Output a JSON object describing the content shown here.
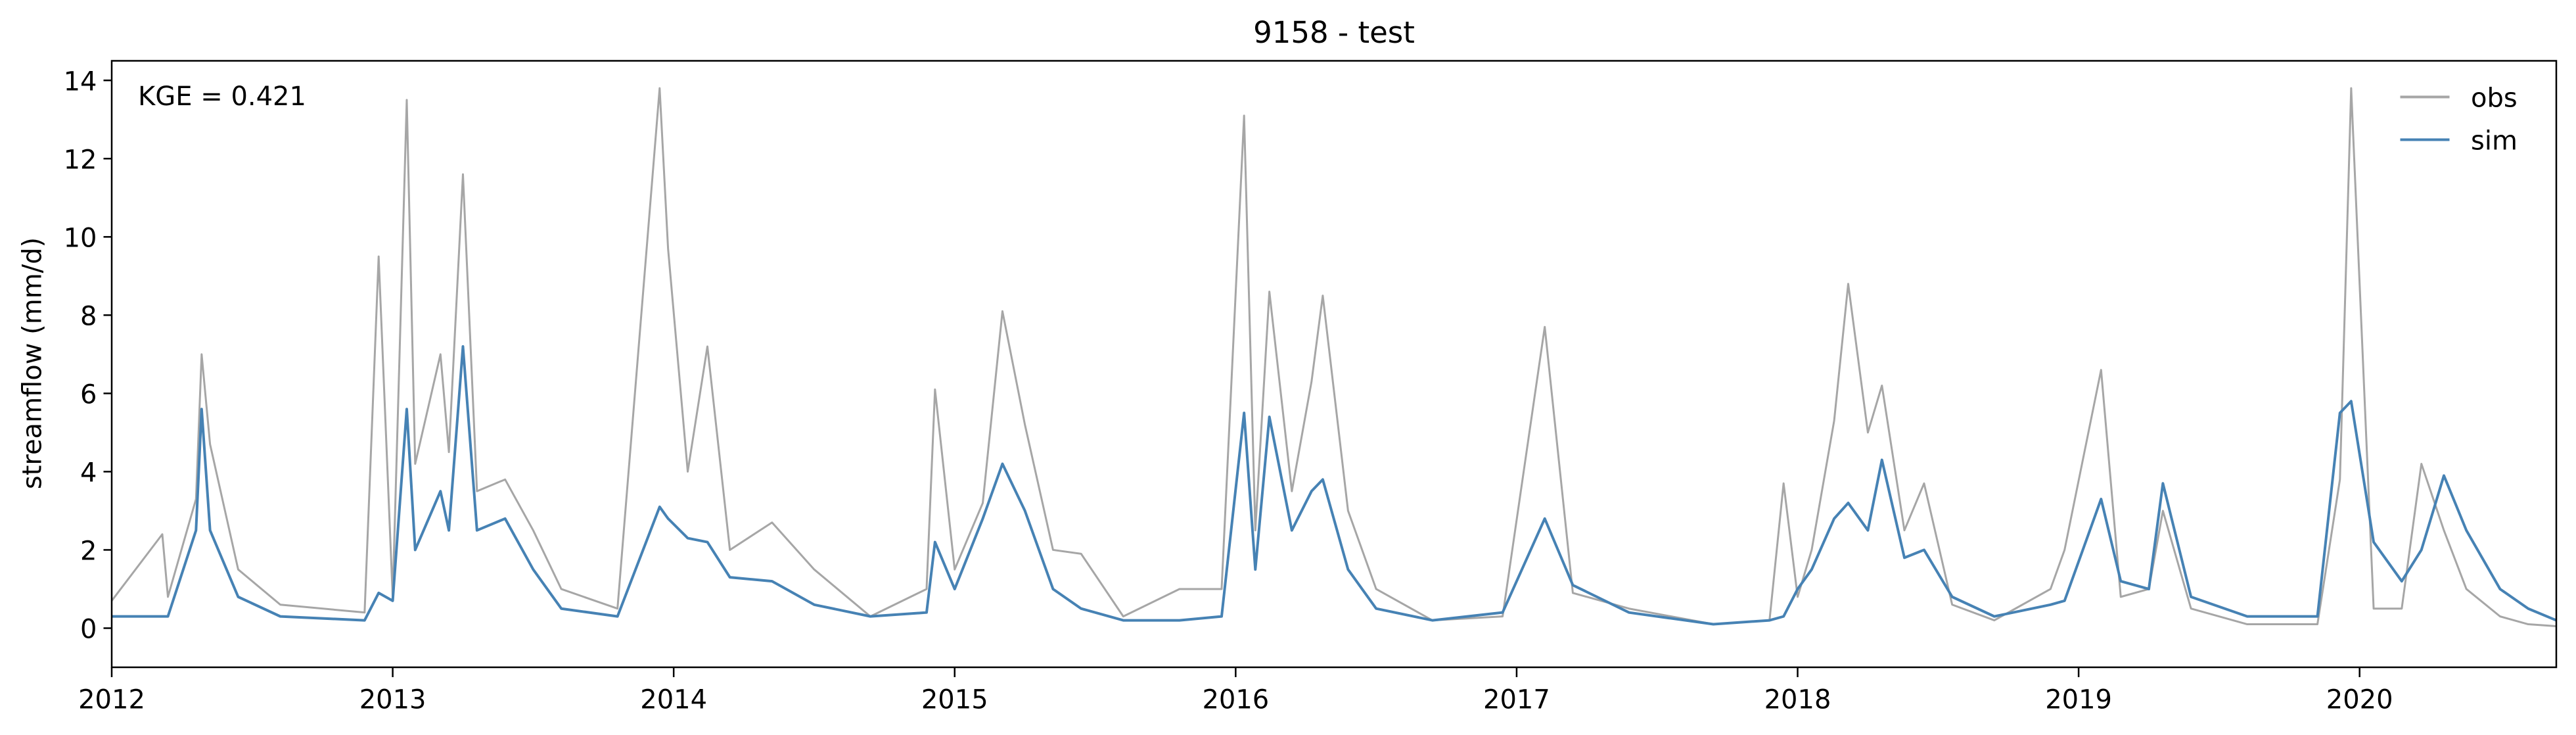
{
  "chart_data": {
    "type": "line",
    "title": "9158 - test",
    "annotation": "KGE = 0.421",
    "ylabel": "streamflow (mm/d)",
    "xlim": [
      2012,
      2020.7
    ],
    "xticks": [
      2012,
      2013,
      2014,
      2015,
      2016,
      2017,
      2018,
      2019,
      2020
    ],
    "ylim": [
      -1,
      14.5
    ],
    "yticks": [
      0,
      2,
      4,
      6,
      8,
      10,
      12,
      14
    ],
    "legend": "upper right",
    "x": [
      2012,
      2012.18,
      2012.2,
      2012.3,
      2012.32,
      2012.35,
      2012.45,
      2012.6,
      2012.9,
      2012.95,
      2013,
      2013.05,
      2013.08,
      2013.17,
      2013.2,
      2013.25,
      2013.3,
      2013.4,
      2013.5,
      2013.6,
      2013.8,
      2013.95,
      2013.98,
      2014.05,
      2014.12,
      2014.2,
      2014.35,
      2014.5,
      2014.7,
      2014.9,
      2014.93,
      2015,
      2015.1,
      2015.17,
      2015.25,
      2015.35,
      2015.45,
      2015.6,
      2015.8,
      2015.95,
      2016.03,
      2016.07,
      2016.12,
      2016.2,
      2016.27,
      2016.31,
      2016.4,
      2016.5,
      2016.7,
      2016.95,
      2017.1,
      2017.2,
      2017.4,
      2017.7,
      2017.9,
      2017.95,
      2018,
      2018.05,
      2018.13,
      2018.18,
      2018.25,
      2018.3,
      2018.38,
      2018.45,
      2018.55,
      2018.7,
      2018.9,
      2018.95,
      2019.08,
      2019.15,
      2019.25,
      2019.3,
      2019.4,
      2019.6,
      2019.85,
      2019.93,
      2019.97,
      2020.05,
      2020.15,
      2020.22,
      2020.3,
      2020.38,
      2020.5,
      2020.6,
      2020.7
    ],
    "series": [
      {
        "name": "obs",
        "color": "#a6a6a6",
        "values": [
          0.7,
          2.4,
          0.8,
          3.3,
          7.0,
          4.7,
          1.5,
          0.6,
          0.4,
          9.5,
          0.8,
          13.5,
          4.2,
          7.0,
          4.5,
          11.6,
          3.5,
          3.8,
          2.5,
          1.0,
          0.5,
          13.8,
          9.7,
          4.0,
          7.2,
          2.0,
          2.7,
          1.5,
          0.3,
          1.0,
          6.1,
          1.5,
          3.2,
          8.1,
          5.2,
          2.0,
          1.9,
          0.3,
          1.0,
          1.0,
          13.1,
          2.5,
          8.6,
          3.5,
          6.3,
          8.5,
          3.0,
          1.0,
          0.2,
          0.3,
          7.7,
          0.9,
          0.5,
          0.1,
          0.2,
          3.7,
          0.8,
          2.0,
          5.3,
          8.8,
          5.0,
          6.2,
          2.5,
          3.7,
          0.6,
          0.2,
          1.0,
          2.0,
          6.6,
          0.8,
          1.0,
          3.0,
          0.5,
          0.1,
          0.1,
          3.8,
          13.8,
          0.5,
          0.5,
          4.2,
          2.5,
          1.0,
          0.3,
          0.1,
          0.05
        ]
      },
      {
        "name": "sim",
        "color": "#4682b4",
        "values": [
          0.3,
          0.3,
          0.3,
          2.5,
          5.6,
          2.5,
          0.8,
          0.3,
          0.2,
          0.9,
          0.7,
          5.6,
          2.0,
          3.5,
          2.5,
          7.2,
          2.5,
          2.8,
          1.5,
          0.5,
          0.3,
          3.1,
          2.8,
          2.3,
          2.2,
          1.3,
          1.2,
          0.6,
          0.3,
          0.4,
          2.2,
          1.0,
          2.8,
          4.2,
          3.0,
          1.0,
          0.5,
          0.2,
          0.2,
          0.3,
          5.5,
          1.5,
          5.4,
          2.5,
          3.5,
          3.8,
          1.5,
          0.5,
          0.2,
          0.4,
          2.8,
          1.1,
          0.4,
          0.1,
          0.2,
          0.3,
          1.0,
          1.5,
          2.8,
          3.2,
          2.5,
          4.3,
          1.8,
          2.0,
          0.8,
          0.3,
          0.6,
          0.7,
          3.3,
          1.2,
          1.0,
          3.7,
          0.8,
          0.3,
          0.3,
          5.5,
          5.8,
          2.2,
          1.2,
          2.0,
          3.9,
          2.5,
          1.0,
          0.5,
          0.2
        ]
      }
    ]
  }
}
